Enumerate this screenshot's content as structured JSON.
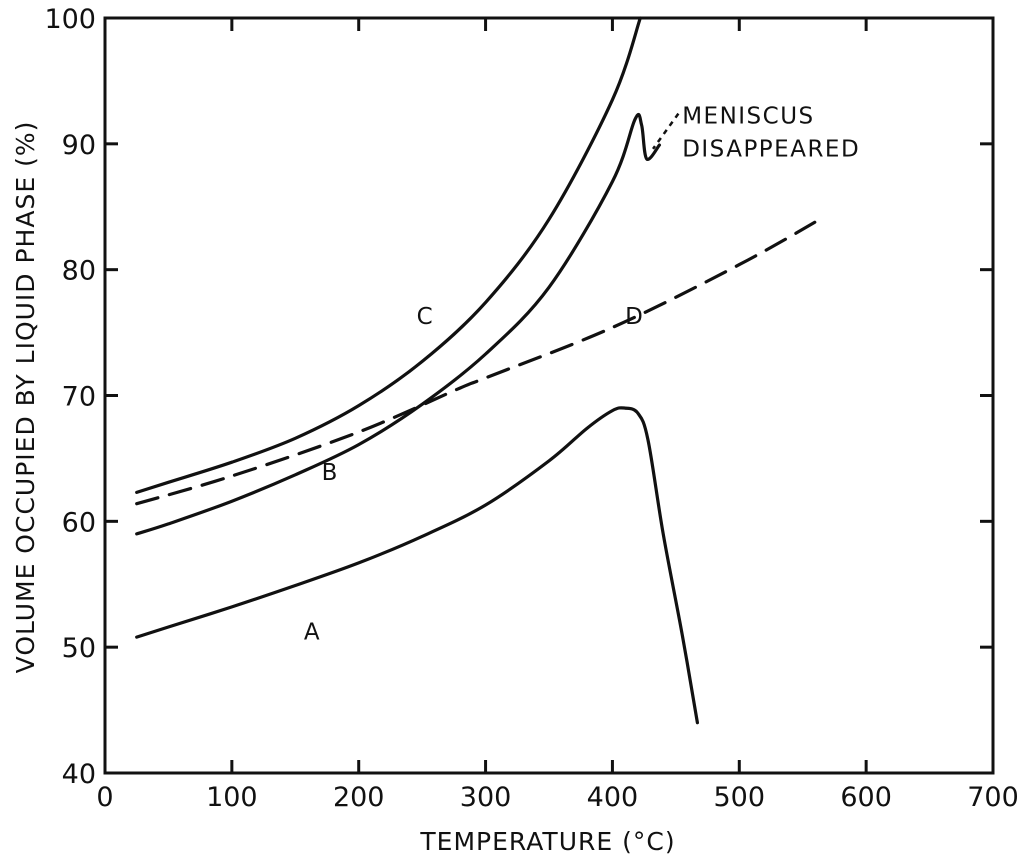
{
  "chart_data": {
    "type": "line",
    "xlabel": "TEMPERATURE (°C)",
    "ylabel": "VOLUME OCCUPIED BY LIQUID PHASE (%)",
    "xlim": [
      0,
      700
    ],
    "ylim": [
      40,
      100
    ],
    "x_ticks": [
      0,
      100,
      200,
      300,
      400,
      500,
      600,
      700
    ],
    "y_ticks": [
      40,
      50,
      60,
      70,
      80,
      90,
      100
    ],
    "grid": false,
    "series": [
      {
        "name": "A",
        "style": "solid",
        "x": [
          25,
          50,
          100,
          150,
          200,
          250,
          300,
          350,
          380,
          400,
          410,
          420,
          428,
          440,
          455,
          467
        ],
        "y": [
          50.8,
          51.6,
          53.2,
          54.9,
          56.7,
          58.8,
          61.3,
          64.8,
          67.4,
          68.8,
          69.0,
          68.6,
          66.5,
          59.0,
          51.0,
          44.0
        ]
      },
      {
        "name": "B",
        "style": "solid",
        "x": [
          25,
          50,
          100,
          150,
          200,
          250,
          300,
          350,
          400,
          418,
          423,
          427,
          437
        ],
        "y": [
          59.0,
          59.8,
          61.6,
          63.7,
          66.1,
          69.3,
          73.3,
          78.6,
          87.0,
          92.0,
          91.5,
          88.8,
          89.9
        ]
      },
      {
        "name": "C",
        "style": "solid",
        "x": [
          25,
          50,
          100,
          150,
          200,
          250,
          300,
          350,
          400,
          422
        ],
        "y": [
          62.3,
          63.1,
          64.7,
          66.6,
          69.2,
          72.7,
          77.4,
          84.0,
          93.5,
          100.0
        ]
      },
      {
        "name": "D",
        "style": "dashed",
        "x": [
          25,
          100,
          200,
          280,
          300,
          400,
          500,
          567
        ],
        "y": [
          61.4,
          63.6,
          67.1,
          70.6,
          71.4,
          75.4,
          80.4,
          84.2
        ]
      }
    ],
    "annotations": [
      {
        "text": "MENISCUS",
        "x": 455,
        "y": 91.6
      },
      {
        "text": "DISAPPEARED",
        "x": 455,
        "y": 89.0
      }
    ],
    "curve_labels": [
      {
        "text": "A",
        "x": 163,
        "y": 50.6
      },
      {
        "text": "B",
        "x": 177,
        "y": 63.3
      },
      {
        "text": "C",
        "x": 252,
        "y": 75.7
      },
      {
        "text": "D",
        "x": 417,
        "y": 75.7
      }
    ],
    "leader": {
      "from": [
        452,
        92.4
      ],
      "to": [
        432,
        89.6
      ]
    }
  }
}
